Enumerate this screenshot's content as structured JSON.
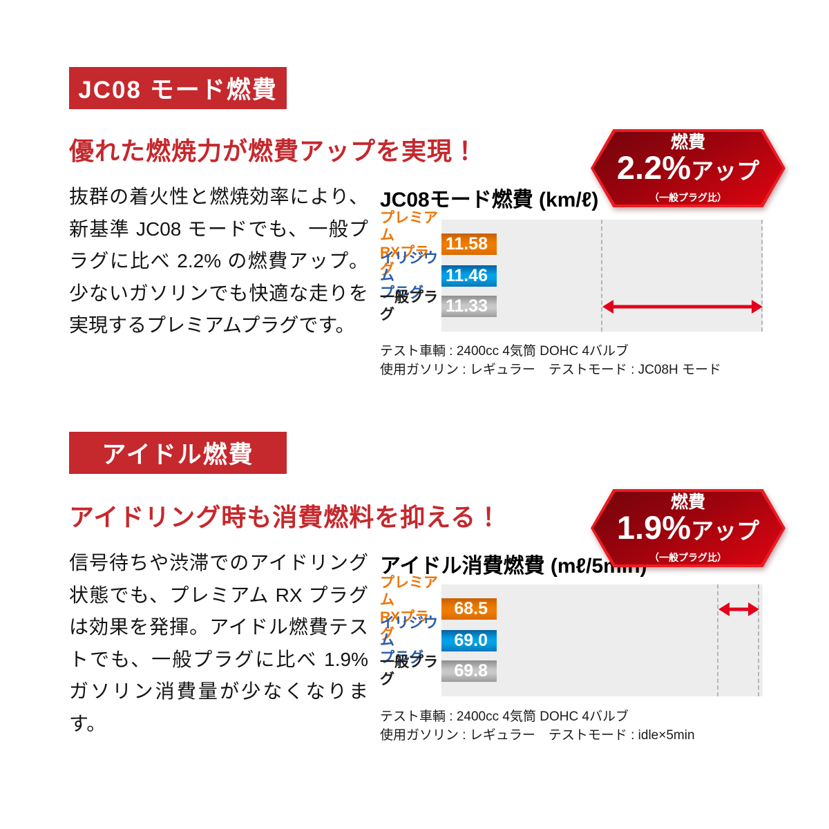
{
  "colors": {
    "section_red": "#c5282d",
    "badge_border_red": "#ec1b23",
    "badge_fill_dark": "#73040c",
    "badge_fill_bright": "#df0511",
    "arrow_red": "#e3001b",
    "bar_orange": "#ee7d00",
    "bar_blue": "#00a0e8",
    "bar_gray": "#c6c6c6",
    "label_orange": "#ed7504",
    "label_blue": "#2a5caa",
    "plot_background": "#ededed"
  },
  "sections": [
    {
      "tag": "JC08 モード燃費",
      "headline": "優れた燃焼力が燃費アップを実現！",
      "body": "抜群の着火性と燃焼効率により、新基準 JC08 モードでも、一般プラグに比べ 2.2% の燃費アップ。少ないガソリンでも快適な走りを実現するプレミアムプラグです。",
      "badge": {
        "label": "燃費",
        "value": "2.2%",
        "suffix": "アップ",
        "note": "（一般プラグ比）"
      },
      "chart_title": "JC08モード燃費 (km/ℓ)",
      "notes": [
        "テスト車輌 : 2400cc 4気筒 DOHC 4バルブ",
        "使用ガソリン : レギュラー　テストモード : JC08H モード"
      ]
    },
    {
      "tag": "アイドル燃費",
      "headline": "アイドリング時も消費燃料を抑える！",
      "body": "信号待ちや渋滞でのアイドリング状態でも、プレミアム RX プラグは効果を発揮。アイドル燃費テストでも、一般プラグに比べ 1.9% ガソリン消費量が少なくなります。",
      "badge": {
        "label": "燃費",
        "value": "1.9%",
        "suffix": "アップ",
        "note": "（一般プラグ比）"
      },
      "chart_title": "アイドル消費燃費 (mℓ/5min)",
      "notes": [
        "テスト車輌 : 2400cc 4気筒 DOHC 4バルブ",
        "使用ガソリン : レギュラー　テストモード : idle×5min"
      ]
    }
  ],
  "chart_data": [
    {
      "type": "bar",
      "orientation": "horizontal",
      "title": "JC08モード燃費 (km/ℓ)",
      "unit": "km/ℓ",
      "categories": [
        "プレミアム\nRXプラグ",
        "イリジウム\nプラグ",
        "一般プラグ"
      ],
      "values": [
        11.58,
        11.46,
        11.33
      ],
      "value_labels": [
        "11.58",
        "11.46",
        "11.33"
      ],
      "bar_colors": [
        "orange",
        "blue",
        "gray"
      ],
      "xlim": [
        11.08,
        11.58
      ],
      "grid": false,
      "legend": false,
      "dashed_lines": [
        11.33,
        11.58
      ],
      "arrow": {
        "from": 11.33,
        "to": 11.58,
        "row": 2
      }
    },
    {
      "type": "bar",
      "orientation": "horizontal",
      "title": "アイドル消費燃費 (mℓ/5min)",
      "unit": "mℓ/5min",
      "categories": [
        "プレミアム\nRXプラグ",
        "イリジウム\nプラグ",
        "一般プラグ"
      ],
      "values": [
        68.5,
        69.0,
        69.8
      ],
      "value_labels": [
        "68.5",
        "69.0",
        "69.8"
      ],
      "bar_colors": [
        "orange",
        "blue",
        "gray"
      ],
      "xlim": [
        59.8,
        69.9
      ],
      "grid": false,
      "legend": false,
      "dashed_lines": [
        68.5,
        69.8
      ],
      "arrow": {
        "from": 68.5,
        "to": 69.8,
        "row": 0
      }
    }
  ]
}
